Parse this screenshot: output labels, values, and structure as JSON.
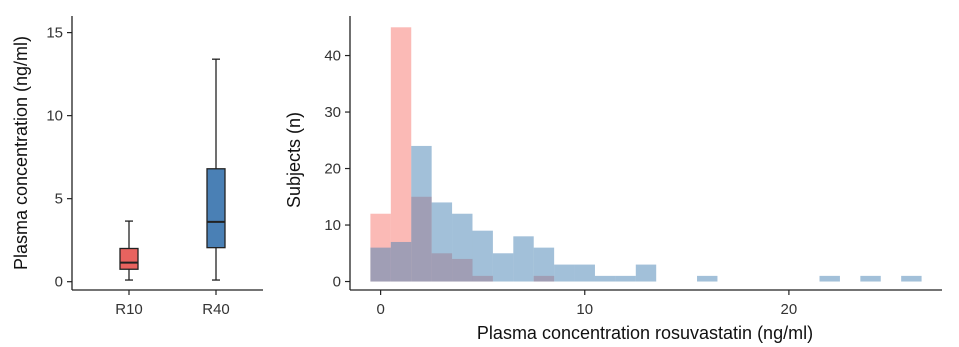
{
  "chart_data": [
    {
      "type": "box",
      "ylabel": "Plasma concentration (ng/ml)",
      "xlabel": "",
      "ylim": [
        -0.5,
        16
      ],
      "yticks": [
        0,
        5,
        10,
        15
      ],
      "categories": [
        "R10",
        "R40"
      ],
      "boxes": [
        {
          "category": "R10",
          "whisker_low": 0.1,
          "q1": 0.75,
          "median": 1.15,
          "q3": 2.0,
          "whisker_high": 3.65,
          "color": "#e8635f"
        },
        {
          "category": "R40",
          "whisker_low": 0.1,
          "q1": 2.05,
          "median": 3.6,
          "q3": 6.8,
          "whisker_high": 13.4,
          "color": "#4a80b5"
        }
      ],
      "grid": false
    },
    {
      "type": "histogram",
      "xlabel": "Plasma concentration rosuvastatin (ng/ml)",
      "ylabel": "Subjects (n)",
      "xlim": [
        -1.5,
        27.5
      ],
      "ylim": [
        -1.5,
        47
      ],
      "xticks": [
        0,
        10,
        20
      ],
      "yticks": [
        0,
        10,
        20,
        30,
        40
      ],
      "bin_start": -0.5,
      "bin_width": 1.0,
      "series": [
        {
          "color": "#f8766d",
          "counts": [
            12,
            45,
            15,
            5,
            4,
            1,
            0,
            0,
            1,
            0,
            0,
            0,
            0,
            0,
            0,
            0,
            0,
            0,
            0,
            0,
            0,
            0,
            0,
            0,
            0,
            0,
            0
          ]
        },
        {
          "color": "#4682b4",
          "counts": [
            6,
            7,
            24,
            14,
            12,
            9,
            5,
            8,
            6,
            3,
            3,
            1,
            1,
            3,
            0,
            0,
            1,
            0,
            0,
            0,
            0,
            0,
            1,
            0,
            1,
            0,
            1
          ]
        }
      ],
      "grid": false
    }
  ]
}
